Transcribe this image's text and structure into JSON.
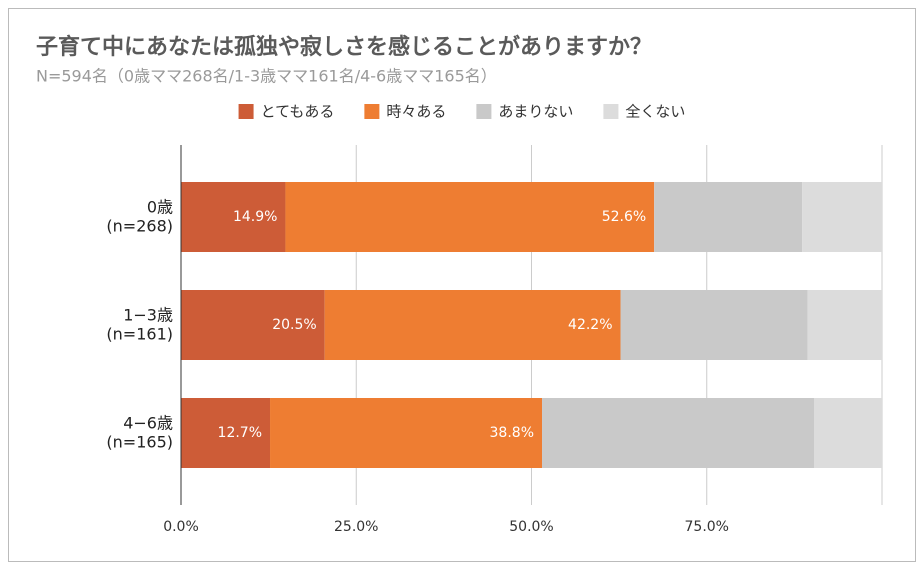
{
  "chart_data": {
    "type": "stacked_bar_horizontal",
    "title": "子育て中にあなたは孤独や寂しさを感じることがありますか？",
    "subtitle": "N=594名（0歳ママ268名/1-3歳ママ161名/4-6歳ママ165名）",
    "categories": [
      "0歳\n(n=268)",
      "1−3歳\n(n=161)",
      "4−6歳\n(n=165)"
    ],
    "series": [
      {
        "name": "とてもある",
        "color": "#cd5c37",
        "values": [
          14.9,
          20.5,
          12.7
        ],
        "value_labels": [
          "14.9%",
          "20.5%",
          "12.7%"
        ]
      },
      {
        "name": "時々ある",
        "color": "#ee7d32",
        "values": [
          52.6,
          42.2,
          38.8
        ],
        "value_labels": [
          "52.6%",
          "42.2%",
          "38.8%"
        ]
      },
      {
        "name": "あまりない",
        "color": "#c9c9c9",
        "values": [
          21.1,
          26.7,
          38.8
        ]
      },
      {
        "name": "全くない",
        "color": "#dcdcdc",
        "values": [
          11.4,
          10.6,
          9.7
        ]
      }
    ],
    "xlim": [
      0,
      100
    ],
    "xticks": [
      {
        "value": 0,
        "label": "0.0%"
      },
      {
        "value": 25,
        "label": "25.0%"
      },
      {
        "value": 50,
        "label": "50.0%"
      },
      {
        "value": 75,
        "label": "75.0%"
      }
    ],
    "grid": true,
    "legend": "top"
  }
}
